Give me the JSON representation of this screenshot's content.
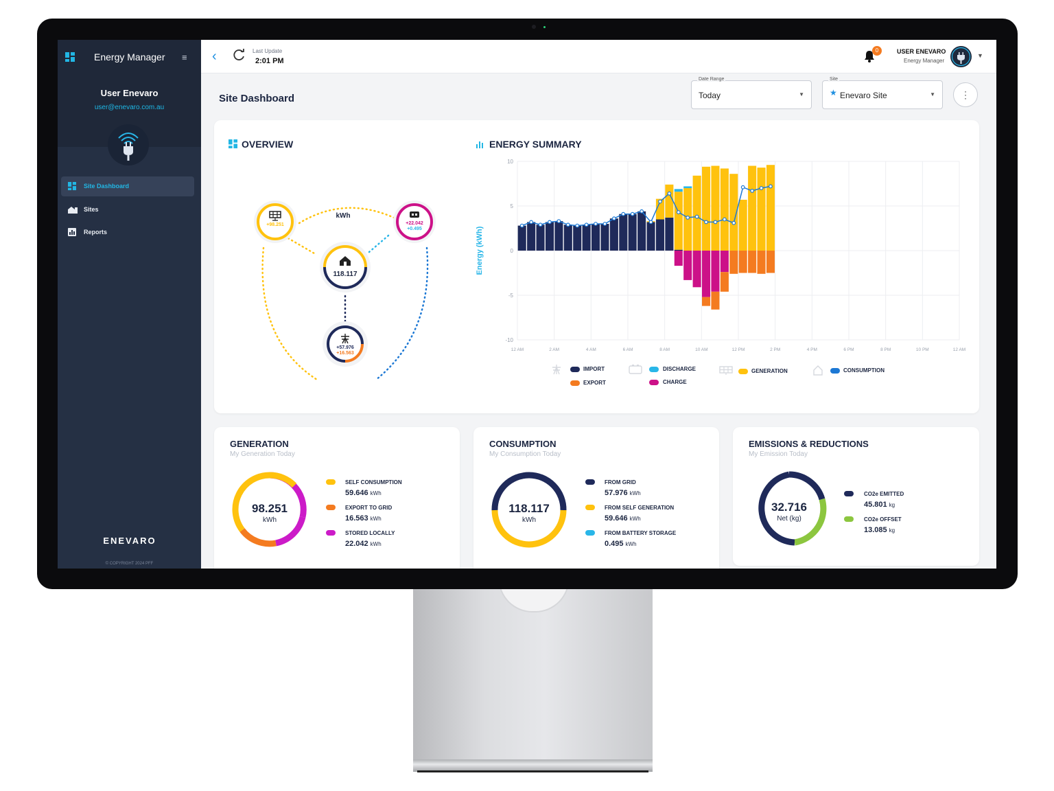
{
  "app": {
    "title": "Energy Manager"
  },
  "sidebar": {
    "user_name": "User Enevaro",
    "user_email": "user@enevaro.com.au",
    "items": [
      {
        "label": "Site Dashboard",
        "icon": "dashboard-icon",
        "active": true
      },
      {
        "label": "Sites",
        "icon": "sites-icon",
        "active": false
      },
      {
        "label": "Reports",
        "icon": "reports-icon",
        "active": false
      }
    ],
    "logo_text": "ENEVARO",
    "copyright": "© COPYRIGHT 2024 PFF"
  },
  "topbar": {
    "last_update_label": "Last Update",
    "last_update_time": "2:01 PM",
    "notification_count": "0",
    "user_name": "USER ENEVARO",
    "user_role": "Energy Manager"
  },
  "header": {
    "page_title": "Site Dashboard",
    "date_range_label": "Date Range",
    "date_range_value": "Today",
    "site_label": "Site",
    "site_value": "Enevaro Site"
  },
  "overview": {
    "title": "OVERVIEW",
    "unit": "kWh",
    "solar_value": "+98.251",
    "battery_charge": "+22.042",
    "battery_discharge": "+0.495",
    "home_value": "118.117",
    "grid_import": "+57.976",
    "grid_export": "+16.563"
  },
  "energy_summary": {
    "title": "ENERGY SUMMARY",
    "legend": {
      "import": "IMPORT",
      "export": "EXPORT",
      "discharge": "DISCHARGE",
      "charge": "CHARGE",
      "generation": "GENERATION",
      "consumption": "CONSUMPTION"
    }
  },
  "chart_data": {
    "type": "bar",
    "ylabel": "Energy (kWh)",
    "ylim": [
      -10,
      10
    ],
    "yticks": [
      "10",
      "5",
      "0",
      "-5",
      "-10"
    ],
    "xticks": [
      "12 AM",
      "2 AM",
      "4 AM",
      "6 AM",
      "8 AM",
      "10 AM",
      "12 PM",
      "2 PM",
      "4 PM",
      "6 PM",
      "8 PM",
      "10 PM",
      "12 AM"
    ],
    "colors": {
      "import": "#1f2a5a",
      "export": "#f47b20",
      "discharge": "#29b6e8",
      "charge": "#cc1188",
      "generation": "#ffc20e",
      "consumption": "#1c78d4"
    },
    "series": [
      {
        "name": "IMPORT",
        "values": [
          2.8,
          3.2,
          2.9,
          3.2,
          3.3,
          2.9,
          2.8,
          2.9,
          3.0,
          3.0,
          3.6,
          4.1,
          4.1,
          4.4,
          3.2,
          3.5,
          3.7,
          0.1,
          0.0,
          0.0,
          0.0,
          0.0,
          0.0,
          0.0,
          0.0,
          0.0,
          0.0,
          0.0
        ]
      },
      {
        "name": "GENERATION",
        "values": [
          0,
          0,
          0,
          0,
          0,
          0,
          0,
          0,
          0,
          0,
          0,
          0,
          0,
          0,
          0.1,
          2.3,
          3.7,
          6.5,
          7.0,
          8.4,
          9.4,
          9.5,
          9.2,
          8.6,
          5.7,
          9.5,
          9.3,
          9.6
        ]
      },
      {
        "name": "DISCHARGE",
        "values": [
          0,
          0,
          0,
          0,
          0,
          0,
          0,
          0,
          0,
          0,
          0,
          0,
          0,
          0,
          0,
          0,
          0,
          0.3,
          0.2,
          0,
          0,
          0,
          0,
          0,
          0,
          0,
          0,
          0
        ]
      },
      {
        "name": "EXPORT",
        "values": [
          0,
          0,
          0,
          0,
          0,
          0,
          0,
          0,
          0,
          0,
          0,
          0,
          0,
          0,
          0,
          0,
          0,
          0,
          0,
          0,
          -1.0,
          -2.0,
          -2.2,
          -2.6,
          -2.5,
          -2.5,
          -2.6,
          -2.5
        ]
      },
      {
        "name": "CHARGE",
        "values": [
          0,
          0,
          0,
          0,
          0,
          0,
          0,
          0,
          0,
          0,
          0,
          0,
          0,
          0,
          0,
          0,
          0,
          -1.7,
          -3.3,
          -4.1,
          -5.2,
          -4.6,
          -2.4,
          0,
          0,
          0,
          0,
          0
        ]
      },
      {
        "name": "CONSUMPTION",
        "values": [
          2.8,
          3.2,
          2.9,
          3.2,
          3.3,
          2.9,
          2.8,
          2.9,
          3.0,
          3.0,
          3.6,
          4.1,
          4.1,
          4.4,
          3.2,
          5.5,
          6.4,
          4.3,
          3.7,
          3.8,
          3.2,
          3.2,
          3.5,
          3.1,
          7.1,
          6.7,
          7.0,
          7.2
        ]
      }
    ]
  },
  "generation_card": {
    "title": "GENERATION",
    "subtitle": "My Generation Today",
    "total": "98.251",
    "unit": "kWh",
    "colors": [
      "#ffc20e",
      "#f47b20",
      "#cc1bc8"
    ],
    "items": [
      {
        "label": "SELF CONSUMPTION",
        "value": "59.646",
        "unit": "kWh"
      },
      {
        "label": "EXPORT TO GRID",
        "value": "16.563",
        "unit": "kWh"
      },
      {
        "label": "STORED LOCALLY",
        "value": "22.042",
        "unit": "kWh"
      }
    ]
  },
  "consumption_card": {
    "title": "CONSUMPTION",
    "subtitle": "My Consumption Today",
    "total": "118.117",
    "unit": "kWh",
    "colors": [
      "#1f2a5a",
      "#ffc20e",
      "#29b6e8"
    ],
    "items": [
      {
        "label": "FROM GRID",
        "value": "57.976",
        "unit": "kWh"
      },
      {
        "label": "FROM SELF GENERATION",
        "value": "59.646",
        "unit": "kWh"
      },
      {
        "label": "FROM BATTERY STORAGE",
        "value": "0.495",
        "unit": "kWh"
      }
    ]
  },
  "emissions_card": {
    "title": "EMISSIONS & REDUCTIONS",
    "subtitle": "My Emission Today",
    "total": "32.716",
    "unit": "Net (kg)",
    "colors": [
      "#1f2a5a",
      "#8cc63f"
    ],
    "items": [
      {
        "label": "CO2e EMITTED",
        "value": "45.801",
        "unit": "kg"
      },
      {
        "label": "CO2e OFFSET",
        "value": "13.085",
        "unit": "kg"
      }
    ]
  }
}
